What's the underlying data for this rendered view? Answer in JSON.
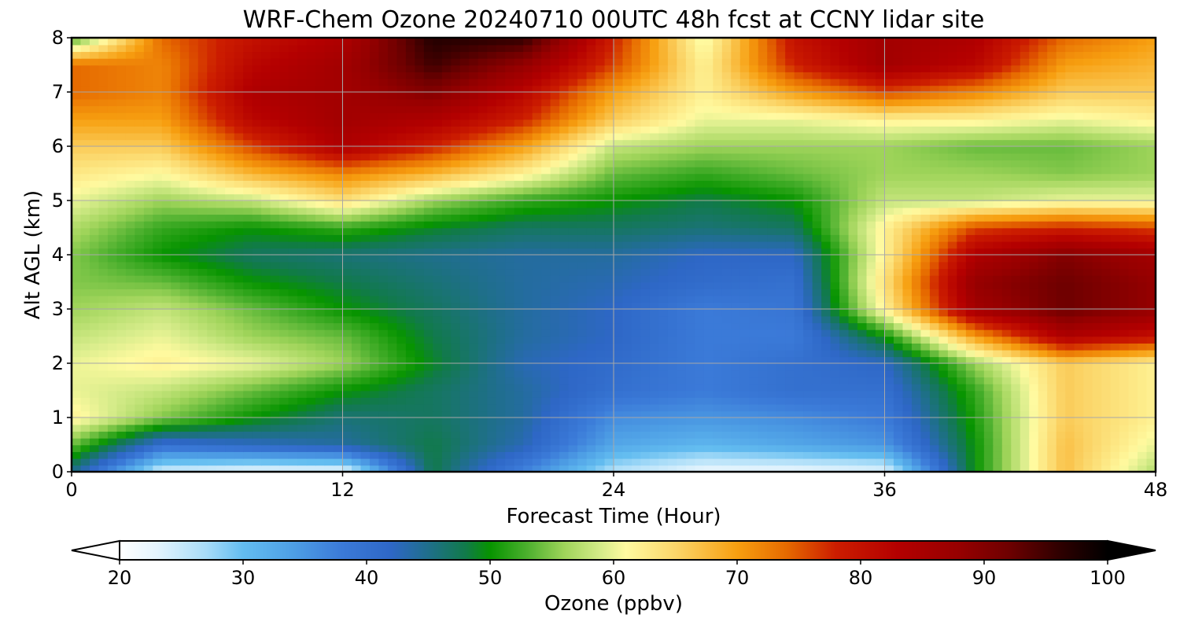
{
  "chart_data": {
    "type": "heatmap",
    "title": "WRF-Chem Ozone  20240710 00UTC 48h fcst at CCNY lidar site",
    "xlabel": "Forecast Time (Hour)",
    "ylabel": "Alt AGL (km)",
    "xlim": [
      0,
      48
    ],
    "ylim": [
      0,
      8
    ],
    "xticks": [
      "0",
      "12",
      "24",
      "36",
      "48"
    ],
    "yticks": [
      "0",
      "1",
      "2",
      "3",
      "4",
      "5",
      "6",
      "7",
      "8"
    ],
    "grid": true,
    "x": [
      0,
      4,
      8,
      12,
      16,
      20,
      24,
      28,
      32,
      36,
      40,
      44,
      48
    ],
    "y": [
      0,
      0.5,
      1,
      1.5,
      2,
      2.5,
      3,
      3.5,
      4,
      4.5,
      5,
      5.5,
      6,
      6.5,
      7,
      7.5,
      8
    ],
    "z": [
      [
        45,
        24,
        22,
        22,
        48,
        37,
        26,
        22,
        22,
        23,
        50,
        67,
        57
      ],
      [
        54,
        40,
        42,
        44,
        48,
        43,
        33,
        31,
        33,
        35,
        50,
        67,
        60
      ],
      [
        62,
        55,
        50,
        46,
        47,
        44,
        36,
        35,
        36,
        38,
        51,
        66,
        62
      ],
      [
        60,
        58,
        54,
        50,
        47,
        44,
        40,
        38,
        40,
        40,
        52,
        66,
        62
      ],
      [
        60,
        62,
        60,
        56,
        49,
        43,
        41,
        38,
        40,
        42,
        56,
        66,
        62
      ],
      [
        58,
        60,
        56,
        54,
        48,
        44,
        42,
        38,
        38,
        50,
        70,
        84,
        80
      ],
      [
        56,
        58,
        54,
        50,
        47,
        44,
        42,
        38,
        39,
        62,
        86,
        92,
        88
      ],
      [
        55,
        54,
        50,
        48,
        46,
        44,
        43,
        41,
        40,
        64,
        88,
        92,
        88
      ],
      [
        55,
        50,
        47,
        46,
        45,
        44,
        44,
        42,
        42,
        62,
        84,
        90,
        86
      ],
      [
        57,
        52,
        50,
        52,
        49,
        47,
        47,
        46,
        47,
        62,
        76,
        78,
        76
      ],
      [
        60,
        56,
        58,
        64,
        56,
        52,
        50,
        48,
        50,
        58,
        58,
        60,
        60
      ],
      [
        63,
        61,
        68,
        72,
        68,
        62,
        54,
        52,
        54,
        56,
        56,
        55,
        56
      ],
      [
        66,
        66,
        76,
        84,
        78,
        70,
        58,
        56,
        56,
        56,
        54,
        54,
        56
      ],
      [
        70,
        70,
        82,
        86,
        84,
        78,
        66,
        60,
        60,
        62,
        62,
        60,
        62
      ],
      [
        74,
        72,
        84,
        86,
        90,
        82,
        70,
        62,
        70,
        76,
        72,
        66,
        66
      ],
      [
        74,
        72,
        82,
        86,
        95,
        88,
        76,
        62,
        78,
        86,
        82,
        70,
        68
      ],
      [
        52,
        74,
        80,
        84,
        97,
        96,
        78,
        60,
        80,
        86,
        84,
        74,
        70
      ]
    ],
    "colorbar": {
      "label": "Ozone  (ppbv)",
      "min": 20,
      "max": 100,
      "ticks": [
        "20",
        "30",
        "40",
        "50",
        "60",
        "70",
        "80",
        "90",
        "100"
      ],
      "extend": "both",
      "stops": [
        {
          "v": 20,
          "c": "#ffffff"
        },
        {
          "v": 23,
          "c": "#e4f4fd"
        },
        {
          "v": 27,
          "c": "#a8dcf8"
        },
        {
          "v": 30,
          "c": "#63bdf0"
        },
        {
          "v": 34,
          "c": "#4e9fe5"
        },
        {
          "v": 38,
          "c": "#3b7ad8"
        },
        {
          "v": 42,
          "c": "#2e67c6"
        },
        {
          "v": 45,
          "c": "#1f6f8b"
        },
        {
          "v": 48,
          "c": "#117a4a"
        },
        {
          "v": 50,
          "c": "#079400"
        },
        {
          "v": 53,
          "c": "#4cb02e"
        },
        {
          "v": 56,
          "c": "#9fd45a"
        },
        {
          "v": 59,
          "c": "#d6ec8a"
        },
        {
          "v": 61,
          "c": "#fffaa0"
        },
        {
          "v": 65,
          "c": "#fbd66a"
        },
        {
          "v": 70,
          "c": "#f79f10"
        },
        {
          "v": 74,
          "c": "#e66a00"
        },
        {
          "v": 78,
          "c": "#cc1d00"
        },
        {
          "v": 83,
          "c": "#b40000"
        },
        {
          "v": 88,
          "c": "#960000"
        },
        {
          "v": 92,
          "c": "#6e0000"
        },
        {
          "v": 96,
          "c": "#300000"
        },
        {
          "v": 100,
          "c": "#000000"
        }
      ]
    }
  }
}
